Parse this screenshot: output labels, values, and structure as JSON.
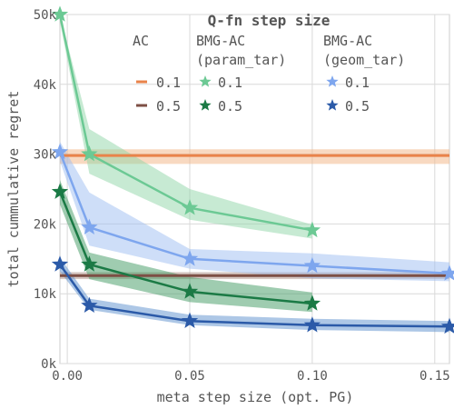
{
  "chart_data": {
    "type": "line",
    "xlabel": "meta step size (opt. PG)",
    "ylabel": "total cummulative regret",
    "xlim": [
      -0.003,
      0.156
    ],
    "ylim": [
      0,
      50000
    ],
    "xticks": [
      0.0,
      0.05,
      0.1,
      0.15
    ],
    "xtick_labels": [
      "0.00",
      "0.05",
      "0.10",
      "0.15"
    ],
    "yticks": [
      0,
      10000,
      20000,
      30000,
      40000,
      50000
    ],
    "ytick_labels": [
      "0k",
      "10k",
      "20k",
      "30k",
      "40k",
      "50k"
    ],
    "grid": true,
    "legend": {
      "title": "Q-fn step size",
      "placement": "top-right",
      "groups": [
        {
          "header": [
            "AC"
          ],
          "entries": [
            {
              "label": "0.1",
              "series": "ac_0.1"
            },
            {
              "label": "0.5",
              "series": "ac_0.5"
            }
          ]
        },
        {
          "header": [
            "BMG-AC",
            "(param_tar)"
          ],
          "entries": [
            {
              "label": "0.1",
              "series": "param_0.1"
            },
            {
              "label": "0.5",
              "series": "param_0.5"
            }
          ]
        },
        {
          "header": [
            "BMG-AC",
            "(geom_tar)"
          ],
          "entries": [
            {
              "label": "0.1",
              "series": "geom_0.1"
            },
            {
              "label": "0.5",
              "series": "geom_0.5"
            }
          ]
        }
      ]
    },
    "horizontal_series": [
      {
        "id": "ac_0.1",
        "value": 29800,
        "low": 28600,
        "high": 30700,
        "color": "#e9834a",
        "band_color": "#f3b98e"
      },
      {
        "id": "ac_0.5",
        "value": 12600,
        "low": 12100,
        "high": 13100,
        "color": "#7d4f45",
        "band_color": "#b59a92"
      }
    ],
    "series": [
      {
        "id": "param_0.1",
        "color": "#6cc994",
        "band_color": "#8fd6a8",
        "marker": "star",
        "x": [
          -0.003,
          0.009,
          0.05,
          0.1
        ],
        "y": [
          50000,
          30000,
          22300,
          19100
        ],
        "low": [
          49000,
          27200,
          20600,
          17900
        ],
        "high": [
          50000,
          33600,
          25000,
          19900
        ]
      },
      {
        "id": "param_0.5",
        "color": "#1b7a45",
        "band_color": "#3f9a62",
        "marker": "star",
        "x": [
          -0.003,
          0.009,
          0.05,
          0.1
        ],
        "y": [
          24600,
          14200,
          10300,
          8600
        ],
        "low": [
          22800,
          12100,
          8800,
          7400
        ],
        "high": [
          26300,
          15900,
          12400,
          10200
        ]
      },
      {
        "id": "geom_0.1",
        "color": "#7ea6ee",
        "band_color": "#9ebdf2",
        "marker": "star",
        "x": [
          -0.003,
          0.009,
          0.05,
          0.1,
          0.156
        ],
        "y": [
          30300,
          19500,
          15000,
          14000,
          12900
        ],
        "low": [
          29000,
          16900,
          13600,
          12200,
          11800
        ],
        "high": [
          31800,
          24500,
          16400,
          15800,
          14500
        ]
      },
      {
        "id": "geom_0.5",
        "color": "#2b5aa8",
        "band_color": "#5b8fcd",
        "marker": "star",
        "x": [
          -0.003,
          0.009,
          0.05,
          0.1,
          0.156
        ],
        "y": [
          14200,
          8300,
          6100,
          5500,
          5300
        ],
        "low": [
          13200,
          7700,
          5500,
          4800,
          4500
        ],
        "high": [
          15200,
          9300,
          7000,
          6400,
          6100
        ]
      }
    ]
  }
}
